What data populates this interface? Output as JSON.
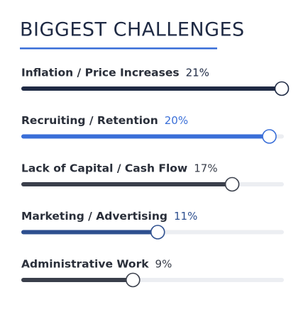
{
  "chart_data": {
    "type": "bar",
    "orientation": "horizontal",
    "title": "BIGGEST CHALLENGES",
    "categories": [
      "Inflation / Price Increases",
      "Recruiting / Retention",
      "Lack of Capital / Cash Flow",
      "Marketing / Advertising",
      "Administrative Work"
    ],
    "values": [
      21,
      20,
      17,
      11,
      9
    ],
    "value_labels": [
      "21%",
      "20%",
      "17%",
      "11%",
      "9%"
    ],
    "colors": [
      "#1f2a44",
      "#3a6fd8",
      "#3a3f4b",
      "#2d4f8f",
      "#3a3f4b"
    ]
  }
}
